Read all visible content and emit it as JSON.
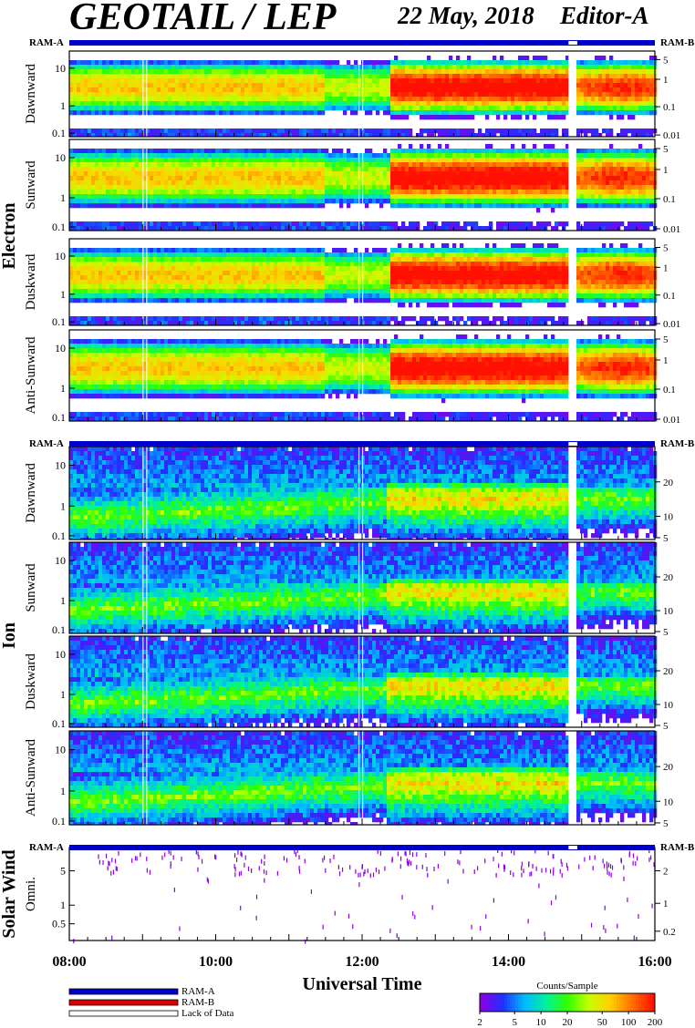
{
  "header": {
    "instrument": "GEOTAIL / LEP",
    "date": "22 May, 2018",
    "editor": "Editor-A"
  },
  "ram": {
    "a": "RAM-A",
    "b": "RAM-B"
  },
  "groups": [
    {
      "name": "Electron"
    },
    {
      "name": "Ion"
    },
    {
      "name": "Solar Wind"
    }
  ],
  "chart_data": {
    "type": "heatmap",
    "xlabel": "Universal Time",
    "x_ticks": [
      "08:00",
      "10:00",
      "12:00",
      "14:00",
      "16:00"
    ],
    "x_range_hours": [
      8,
      16
    ],
    "panels": [
      {
        "group": "Electron",
        "label": "Dawnward",
        "left_ticks": [
          "10",
          "1",
          "0.1"
        ],
        "right_ticks": [
          "5",
          "1",
          "0.1",
          "0.01"
        ],
        "profile": "electron"
      },
      {
        "group": "Electron",
        "label": "Sunward",
        "left_ticks": [
          "10",
          "1",
          "0.1"
        ],
        "right_ticks": [
          "5",
          "1",
          "0.1",
          "0.01"
        ],
        "profile": "electron"
      },
      {
        "group": "Electron",
        "label": "Duskward",
        "left_ticks": [
          "10",
          "1",
          "0.1"
        ],
        "right_ticks": [
          "5",
          "1",
          "0.1",
          "0.01"
        ],
        "profile": "electron"
      },
      {
        "group": "Electron",
        "label": "Anti-Sunward",
        "left_ticks": [
          "10",
          "1",
          "0.1"
        ],
        "right_ticks": [
          "5",
          "1",
          "0.1",
          "0.01"
        ],
        "profile": "electron"
      },
      {
        "group": "Ion",
        "label": "Dawnward",
        "left_ticks": [
          "10",
          "1",
          "0.1"
        ],
        "right_ticks": [
          "20",
          "10",
          "5"
        ],
        "profile": "ion"
      },
      {
        "group": "Ion",
        "label": "Sunward",
        "left_ticks": [
          "10",
          "1",
          "0.1"
        ],
        "right_ticks": [
          "20",
          "10",
          "5"
        ],
        "profile": "ion"
      },
      {
        "group": "Ion",
        "label": "Duskward",
        "left_ticks": [
          "10",
          "1",
          "0.1"
        ],
        "right_ticks": [
          "20",
          "10",
          "5"
        ],
        "profile": "ion"
      },
      {
        "group": "Ion",
        "label": "Anti-Sunward",
        "left_ticks": [
          "10",
          "1",
          "0.1"
        ],
        "right_ticks": [
          "20",
          "10",
          "5"
        ],
        "profile": "ion"
      },
      {
        "group": "Solar Wind",
        "label": "Omni.",
        "left_ticks": [
          "5",
          "1",
          "0.5"
        ],
        "right_ticks": [
          "2",
          "1",
          "0.2"
        ],
        "profile": "sw"
      }
    ],
    "data_gap_hours": [
      14.82,
      14.92
    ],
    "colorbar": {
      "title": "Counts/Sample",
      "ticks": [
        "2",
        "5",
        "10",
        "20",
        "50",
        "100",
        "200"
      ],
      "colors": [
        "#8a00e8",
        "#2030ff",
        "#00b8ff",
        "#00f0a0",
        "#30ff00",
        "#c8ff00",
        "#ffd000",
        "#ff7000",
        "#ff1000"
      ]
    },
    "legend": [
      {
        "label": "RAM-A",
        "color": "#0000cc"
      },
      {
        "label": "RAM-B",
        "color": "#e00000"
      },
      {
        "label": "Lack of Data",
        "color": "#ffffff"
      }
    ]
  }
}
